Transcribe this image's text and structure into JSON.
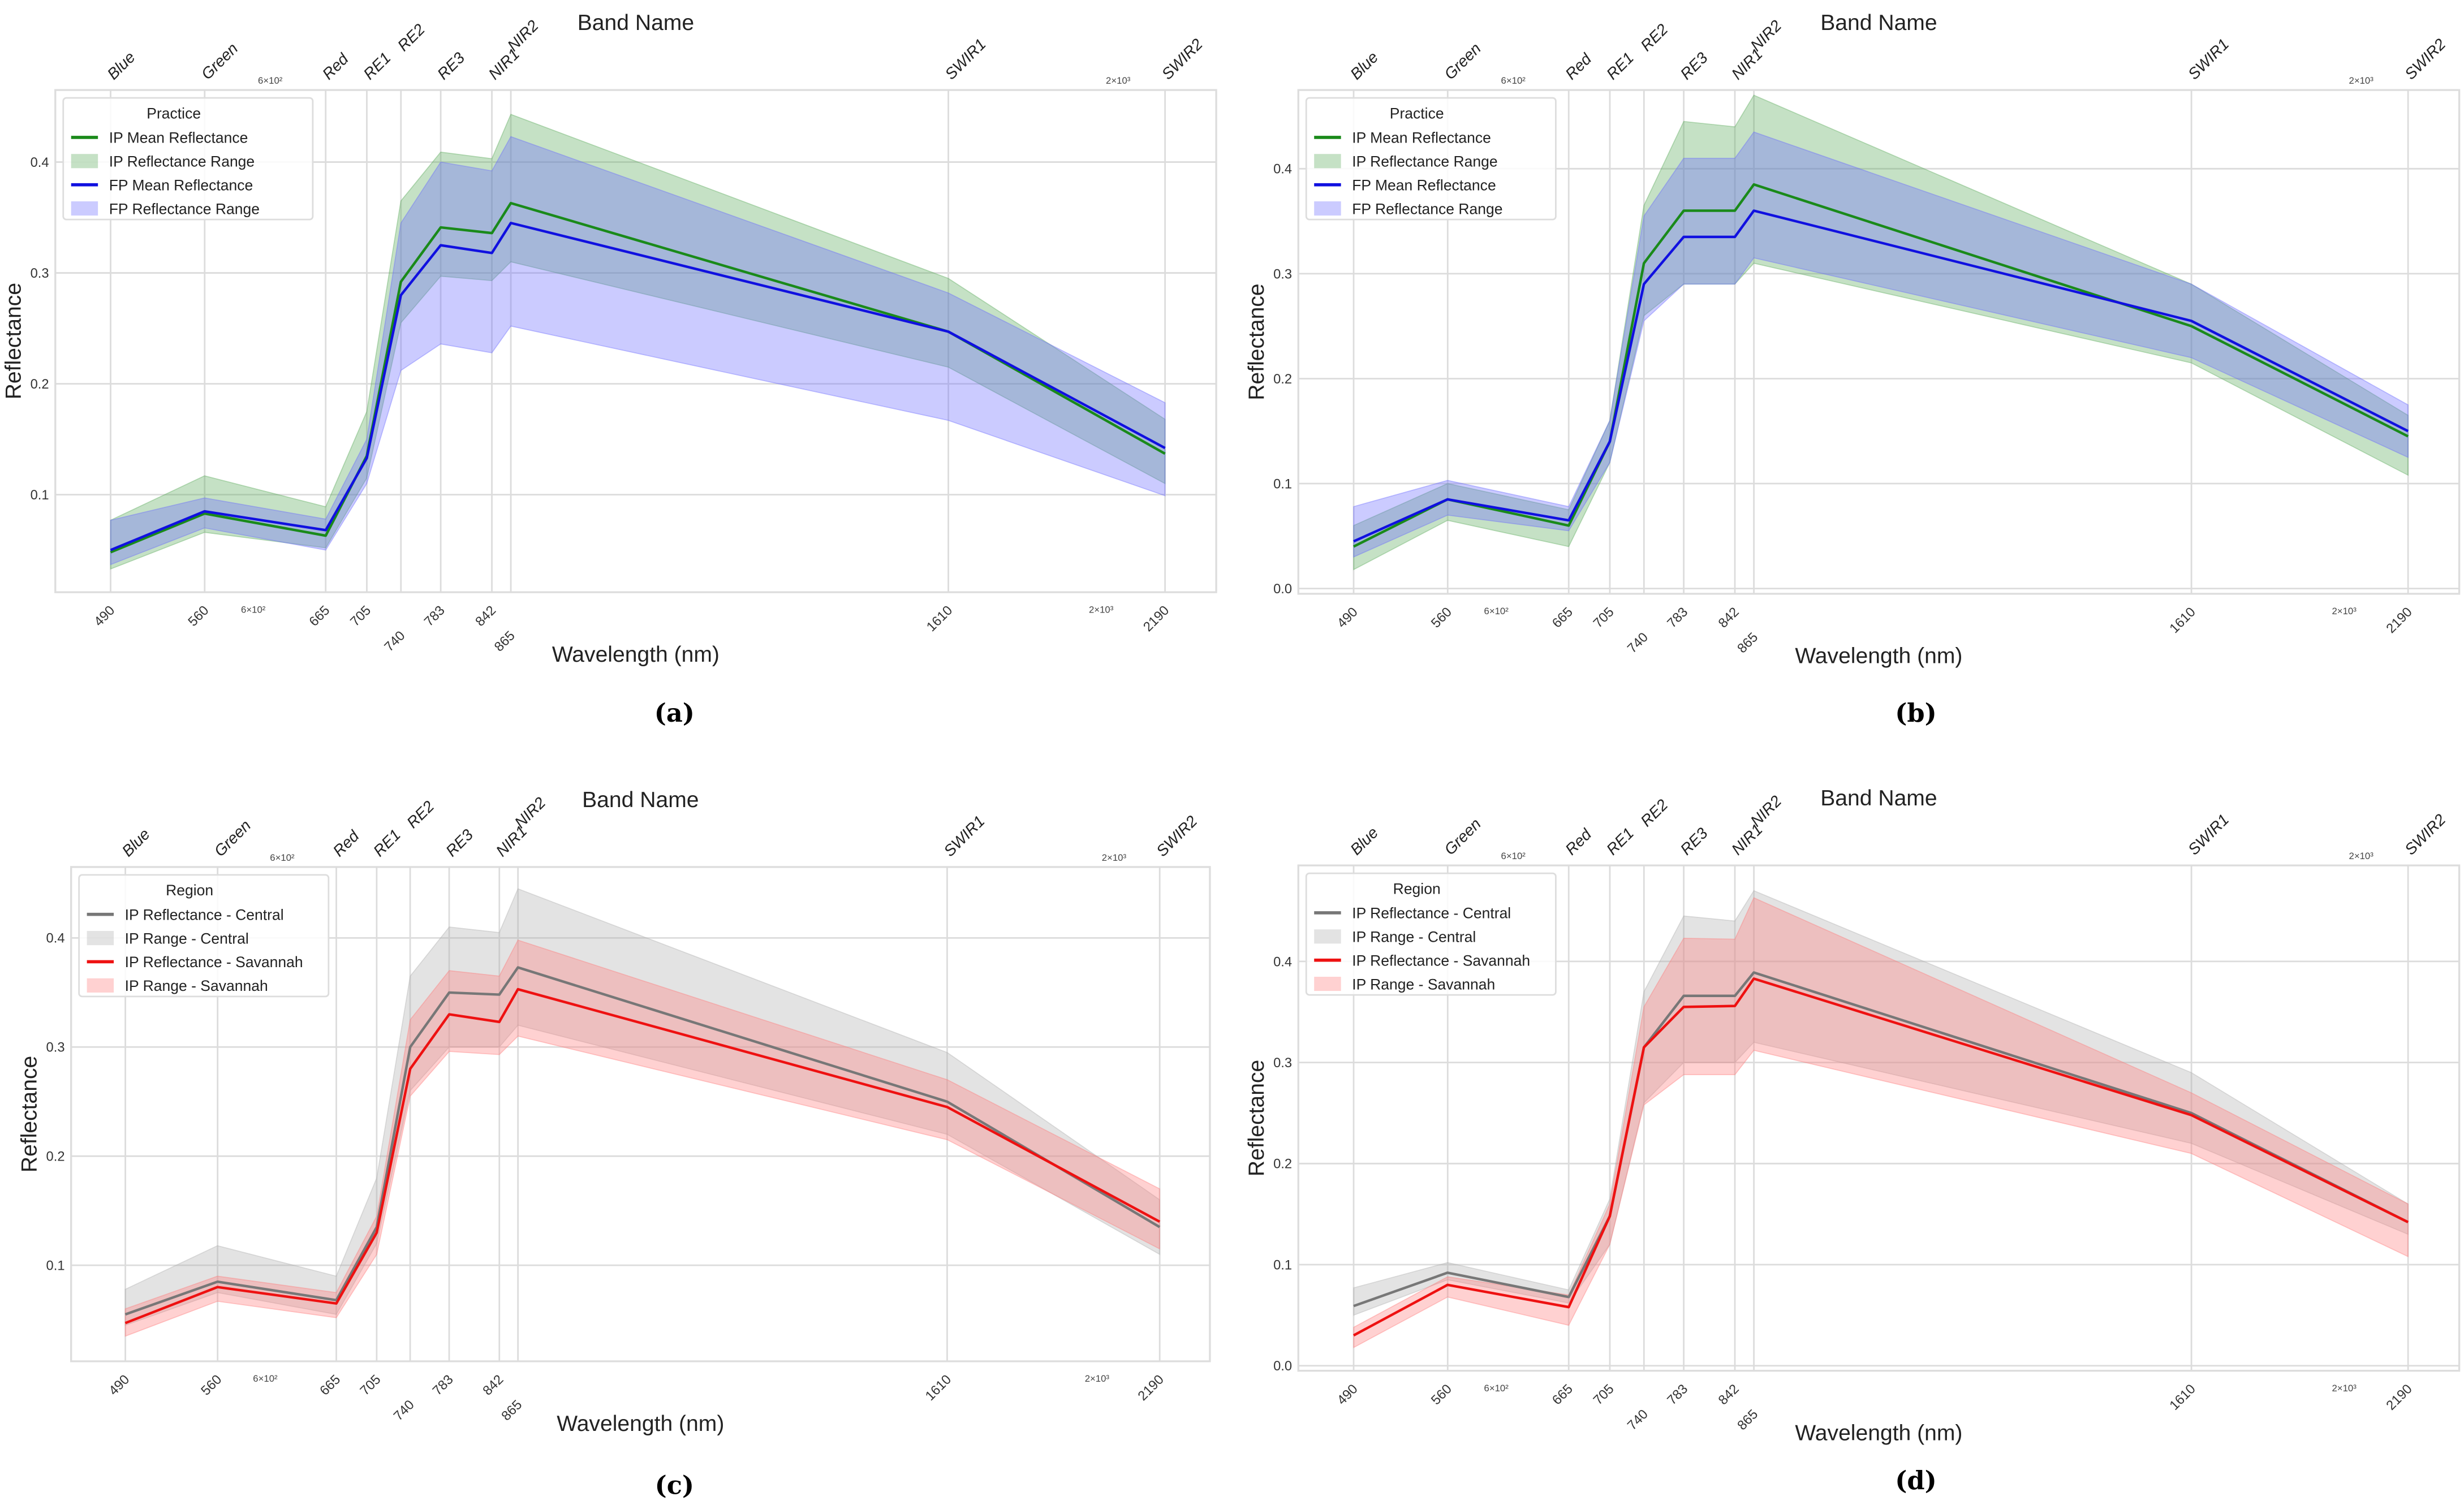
{
  "chart_data": [
    {
      "type": "line",
      "caption": "(a)",
      "title": "Band Name",
      "xlabel": "Wavelength (nm)",
      "ylabel": "Reflectance",
      "xscale": "log",
      "xlim": [
        453,
        2355
      ],
      "ylim": [
        0.012,
        0.465
      ],
      "yticks": [
        0.1,
        0.2,
        0.3,
        0.4
      ],
      "ytick_labels": [
        "0.1",
        "0.2",
        "0.3",
        "0.4"
      ],
      "x": [
        490,
        560,
        665,
        705,
        740,
        783,
        842,
        865,
        1610,
        2190
      ],
      "x_tick_labels": [
        "490",
        "560",
        "665",
        "705",
        "740",
        "783",
        "842",
        "865",
        "1610",
        "2190"
      ],
      "band_names": [
        "Blue",
        "Green",
        "Red",
        "RE1",
        "RE2",
        "RE3",
        "NIR1",
        "NIR2",
        "SWIR1",
        "SWIR2"
      ],
      "minor_tick_labels": [
        "6×10²",
        "2×10³"
      ],
      "grid": true,
      "legend": {
        "title": "Practice",
        "placement": "top-left"
      },
      "series": [
        {
          "name": "IP Mean Reflectance",
          "kind": "line",
          "color": "#1a8a1a",
          "values": [
            0.048,
            0.083,
            0.063,
            0.135,
            0.292,
            0.341,
            0.336,
            0.363,
            0.247,
            0.137
          ]
        },
        {
          "name": "IP Reflectance Range",
          "kind": "band",
          "color": "#5aaa5a",
          "lower": [
            0.033,
            0.066,
            0.052,
            0.115,
            0.255,
            0.297,
            0.293,
            0.31,
            0.215,
            0.11
          ],
          "upper": [
            0.077,
            0.117,
            0.089,
            0.175,
            0.365,
            0.409,
            0.403,
            0.443,
            0.295,
            0.168
          ]
        },
        {
          "name": "FP Mean Reflectance",
          "kind": "line",
          "color": "#1010e0",
          "values": [
            0.05,
            0.085,
            0.068,
            0.133,
            0.28,
            0.325,
            0.318,
            0.345,
            0.247,
            0.142
          ]
        },
        {
          "name": "FP Reflectance Range",
          "kind": "band",
          "color": "#6a6aff",
          "lower": [
            0.037,
            0.07,
            0.05,
            0.11,
            0.212,
            0.236,
            0.228,
            0.252,
            0.167,
            0.099
          ],
          "upper": [
            0.077,
            0.097,
            0.078,
            0.15,
            0.345,
            0.4,
            0.392,
            0.423,
            0.282,
            0.183
          ]
        }
      ]
    },
    {
      "type": "line",
      "caption": "(b)",
      "title": "Band Name",
      "xlabel": "Wavelength (nm)",
      "ylabel": "Reflectance",
      "xscale": "log",
      "xlim": [
        453,
        2355
      ],
      "ylim": [
        -0.005,
        0.475
      ],
      "yticks": [
        0.0,
        0.1,
        0.2,
        0.3,
        0.4
      ],
      "ytick_labels": [
        "0.0",
        "0.1",
        "0.2",
        "0.3",
        "0.4"
      ],
      "x": [
        490,
        560,
        665,
        705,
        740,
        783,
        842,
        865,
        1610,
        2190
      ],
      "x_tick_labels": [
        "490",
        "560",
        "665",
        "705",
        "740",
        "783",
        "842",
        "865",
        "1610",
        "2190"
      ],
      "band_names": [
        "Blue",
        "Green",
        "Red",
        "RE1",
        "RE2",
        "RE3",
        "NIR1",
        "NIR2",
        "SWIR1",
        "SWIR2"
      ],
      "minor_tick_labels": [
        "6×10²",
        "2×10³"
      ],
      "grid": true,
      "legend": {
        "title": "Practice",
        "placement": "top-left"
      },
      "series": [
        {
          "name": "IP Mean Reflectance",
          "kind": "line",
          "color": "#1a8a1a",
          "values": [
            0.04,
            0.085,
            0.06,
            0.14,
            0.31,
            0.36,
            0.36,
            0.385,
            0.25,
            0.145
          ]
        },
        {
          "name": "IP Reflectance Range",
          "kind": "band",
          "color": "#5aaa5a",
          "lower": [
            0.018,
            0.065,
            0.04,
            0.12,
            0.26,
            0.29,
            0.29,
            0.31,
            0.215,
            0.108
          ],
          "upper": [
            0.06,
            0.1,
            0.075,
            0.16,
            0.365,
            0.445,
            0.44,
            0.47,
            0.29,
            0.165
          ]
        },
        {
          "name": "FP Mean Reflectance",
          "kind": "line",
          "color": "#1010e0",
          "values": [
            0.045,
            0.085,
            0.065,
            0.14,
            0.29,
            0.335,
            0.335,
            0.36,
            0.255,
            0.15
          ]
        },
        {
          "name": "FP Reflectance Range",
          "kind": "band",
          "color": "#6a6aff",
          "lower": [
            0.03,
            0.07,
            0.055,
            0.12,
            0.255,
            0.29,
            0.29,
            0.315,
            0.22,
            0.125
          ],
          "upper": [
            0.078,
            0.103,
            0.078,
            0.16,
            0.355,
            0.41,
            0.41,
            0.435,
            0.29,
            0.175
          ]
        }
      ]
    },
    {
      "type": "line",
      "caption": "(c)",
      "title": "Band Name",
      "xlabel": "Wavelength (nm)",
      "ylabel": "Reflectance",
      "xscale": "log",
      "xlim": [
        453,
        2355
      ],
      "ylim": [
        0.012,
        0.465
      ],
      "yticks": [
        0.1,
        0.2,
        0.3,
        0.4
      ],
      "ytick_labels": [
        "0.1",
        "0.2",
        "0.3",
        "0.4"
      ],
      "x": [
        490,
        560,
        665,
        705,
        740,
        783,
        842,
        865,
        1610,
        2190
      ],
      "x_tick_labels": [
        "490",
        "560",
        "665",
        "705",
        "740",
        "783",
        "842",
        "865",
        "1610",
        "2190"
      ],
      "band_names": [
        "Blue",
        "Green",
        "Red",
        "RE1",
        "RE2",
        "RE3",
        "NIR1",
        "NIR2",
        "SWIR1",
        "SWIR2"
      ],
      "minor_tick_labels": [
        "6×10²",
        "2×10³"
      ],
      "grid": true,
      "legend": {
        "title": "Region",
        "placement": "top-left"
      },
      "series": [
        {
          "name": "IP Reflectance - Central",
          "kind": "line",
          "color": "#777777",
          "values": [
            0.055,
            0.085,
            0.068,
            0.135,
            0.3,
            0.35,
            0.348,
            0.373,
            0.25,
            0.135
          ]
        },
        {
          "name": "IP Range - Central",
          "kind": "band",
          "color": "#b0b0b0",
          "lower": [
            0.045,
            0.075,
            0.055,
            0.12,
            0.26,
            0.3,
            0.3,
            0.32,
            0.22,
            0.11
          ],
          "upper": [
            0.078,
            0.118,
            0.09,
            0.18,
            0.365,
            0.41,
            0.405,
            0.445,
            0.295,
            0.16
          ]
        },
        {
          "name": "IP Reflectance - Savannah",
          "kind": "line",
          "color": "#ee1111",
          "values": [
            0.047,
            0.08,
            0.065,
            0.13,
            0.28,
            0.33,
            0.323,
            0.353,
            0.245,
            0.14
          ]
        },
        {
          "name": "IP Range - Savannah",
          "kind": "band",
          "color": "#ff7a7a",
          "lower": [
            0.035,
            0.067,
            0.052,
            0.11,
            0.255,
            0.296,
            0.293,
            0.31,
            0.215,
            0.115
          ],
          "upper": [
            0.06,
            0.09,
            0.075,
            0.145,
            0.325,
            0.37,
            0.365,
            0.398,
            0.27,
            0.17
          ]
        }
      ]
    },
    {
      "type": "line",
      "caption": "(d)",
      "title": "Band Name",
      "xlabel": "Wavelength (nm)",
      "ylabel": "Reflectance",
      "xscale": "log",
      "xlim": [
        453,
        2355
      ],
      "ylim": [
        -0.005,
        0.495
      ],
      "yticks": [
        0.0,
        0.1,
        0.2,
        0.3,
        0.4
      ],
      "ytick_labels": [
        "0.0",
        "0.1",
        "0.2",
        "0.3",
        "0.4"
      ],
      "x": [
        490,
        560,
        665,
        705,
        740,
        783,
        842,
        865,
        1610,
        2190
      ],
      "x_tick_labels": [
        "490",
        "560",
        "665",
        "705",
        "740",
        "783",
        "842",
        "865",
        "1610",
        "2190"
      ],
      "band_names": [
        "Blue",
        "Green",
        "Red",
        "RE1",
        "RE2",
        "RE3",
        "NIR1",
        "NIR2",
        "SWIR1",
        "SWIR2"
      ],
      "minor_tick_labels": [
        "6×10²",
        "2×10³"
      ],
      "grid": true,
      "legend": {
        "title": "Region",
        "placement": "top-left"
      },
      "series": [
        {
          "name": "IP Reflectance - Central",
          "kind": "line",
          "color": "#777777",
          "values": [
            0.059,
            0.092,
            0.068,
            0.148,
            0.315,
            0.366,
            0.366,
            0.389,
            0.25,
            0.142
          ]
        },
        {
          "name": "IP Range - Central",
          "kind": "band",
          "color": "#b0b0b0",
          "lower": [
            0.05,
            0.085,
            0.062,
            0.12,
            0.26,
            0.3,
            0.3,
            0.32,
            0.22,
            0.13
          ],
          "upper": [
            0.077,
            0.102,
            0.075,
            0.165,
            0.37,
            0.445,
            0.44,
            0.47,
            0.29,
            0.16
          ]
        },
        {
          "name": "IP Reflectance - Savannah",
          "kind": "line",
          "color": "#ee1111",
          "values": [
            0.03,
            0.08,
            0.058,
            0.148,
            0.315,
            0.355,
            0.356,
            0.383,
            0.248,
            0.142
          ]
        },
        {
          "name": "IP Range - Savannah",
          "kind": "band",
          "color": "#ff7a7a",
          "lower": [
            0.018,
            0.068,
            0.04,
            0.12,
            0.258,
            0.288,
            0.288,
            0.312,
            0.21,
            0.108
          ],
          "upper": [
            0.038,
            0.088,
            0.07,
            0.16,
            0.355,
            0.423,
            0.422,
            0.463,
            0.27,
            0.16
          ]
        }
      ]
    }
  ]
}
